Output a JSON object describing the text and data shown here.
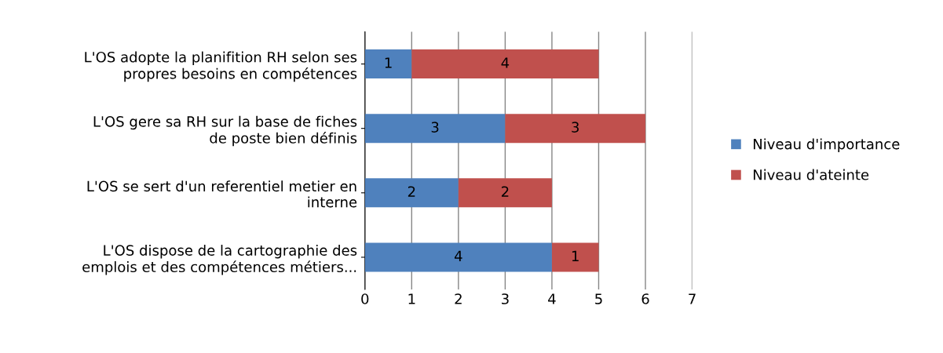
{
  "chart_data": {
    "type": "bar",
    "orientation": "horizontal",
    "stacked": true,
    "categories": [
      "L'OS adopte la planifition RH selon ses\npropres besoins en compétences",
      "L'OS gere sa RH sur la base de fiches\nde poste bien définis",
      "L'OS se sert d'un referentiel metier en\ninterne",
      "L'OS dispose de la cartographie des\nemplois et des compétences métiers..."
    ],
    "series": [
      {
        "name": "Niveau d'importance",
        "color": "#4f81bd",
        "values": [
          1,
          3,
          2,
          4
        ]
      },
      {
        "name": "Niveau d'ateinte",
        "color": "#c0504d",
        "values": [
          4,
          3,
          2,
          1
        ]
      }
    ],
    "xlim": [
      0,
      7
    ],
    "xticks": [
      0,
      1,
      2,
      3,
      4,
      5,
      6,
      7
    ],
    "grid": "x",
    "legend": "right",
    "data_labels": true
  }
}
